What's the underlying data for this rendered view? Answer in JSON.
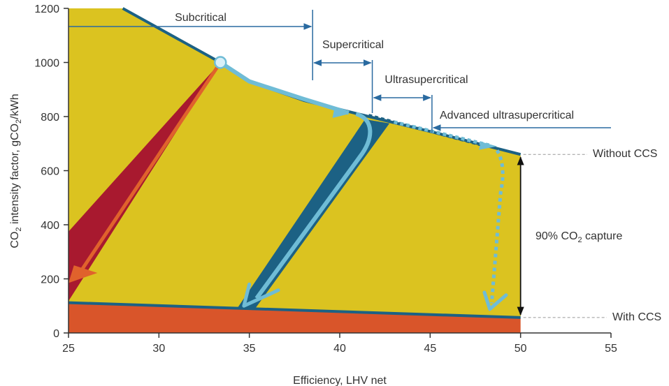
{
  "chart_data": {
    "type": "area",
    "xlabel": "Efficiency,  LHV net",
    "ylabel_parts": [
      "CO",
      "2",
      " intensity factor, gCO",
      "2",
      "/kWh"
    ],
    "xlim": [
      25,
      55
    ],
    "ylim": [
      0,
      1200
    ],
    "x_ticks": [
      "25",
      "30",
      "35",
      "40",
      "45",
      "50",
      "55"
    ],
    "y_ticks": [
      "0",
      "200",
      "400",
      "600",
      "800",
      "1000",
      "1200"
    ],
    "grid": false,
    "series": [
      {
        "name": "Without CCS",
        "x": [
          25,
          28,
          33.4,
          35,
          38,
          41,
          45,
          50
        ],
        "y": [
          1200,
          1200,
          1000,
          930,
          860,
          810,
          745,
          660
        ]
      },
      {
        "name": "With CCS",
        "x": [
          25,
          50
        ],
        "y": [
          112,
          57
        ]
      }
    ],
    "key_point": {
      "x": 33.4,
      "y": 1000
    },
    "technology_bands": [
      {
        "label": "Subcritical",
        "x_end": 38.5
      },
      {
        "label": "Supercritical",
        "x_start": 38.5,
        "x_end": 41.8
      },
      {
        "label": "Ultrasupercritical",
        "x_start": 41.8,
        "x_end": 45.1
      },
      {
        "label": "Advanced ultrasupercritical",
        "x_start": 45.1
      }
    ],
    "annotations": {
      "without_ccs": "Without CCS",
      "with_ccs": "With CCS",
      "capture_parts": [
        "90% CO",
        "2",
        " capture"
      ]
    },
    "colors": {
      "area": "#dbc320",
      "floor": "#d9552a",
      "dark_blue": "#1c6184",
      "light_blue": "#6fbcd6",
      "orange": "#e0622c",
      "dark_red": "#a8192f",
      "axis": "#333333",
      "band_line": "#2a6aa0"
    }
  }
}
